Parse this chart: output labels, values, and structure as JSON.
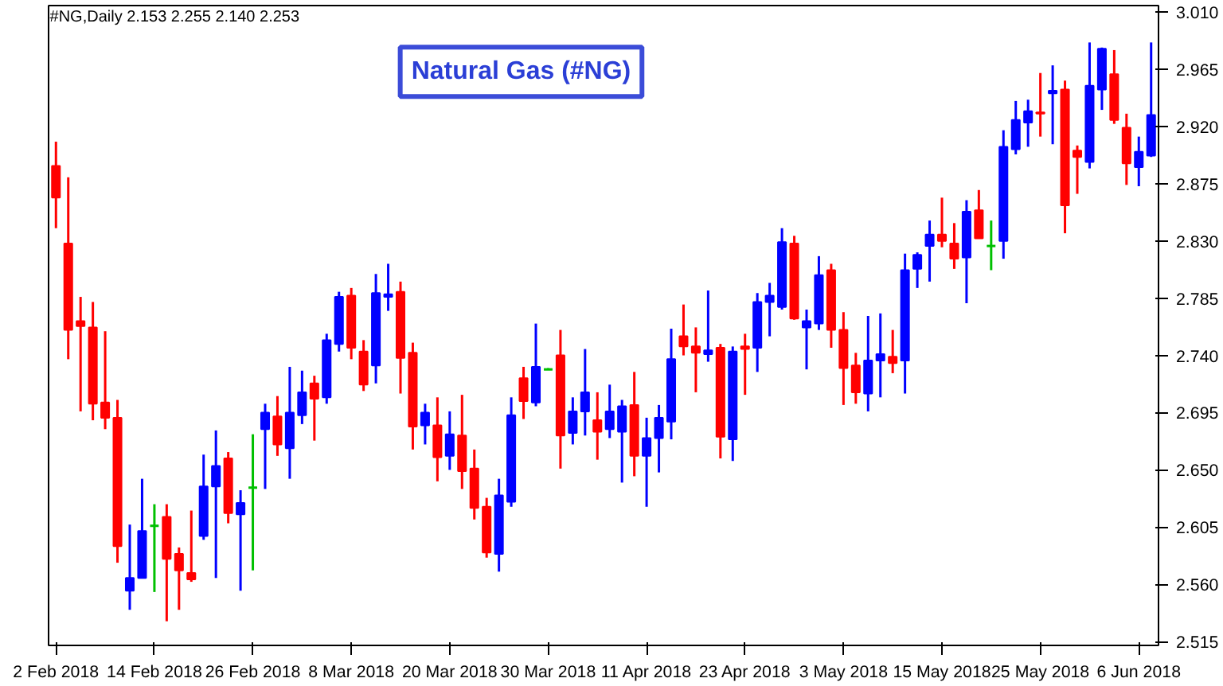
{
  "chart_data": {
    "type": "candlestick",
    "title": "Natural Gas (#NG)",
    "annotations": [
      "#NG,Daily  2.153 2.255 2.140 2.253"
    ],
    "categories": [
      "2 Feb 2018",
      null,
      null,
      null,
      null,
      null,
      null,
      null,
      "14 Feb 2018",
      null,
      null,
      null,
      null,
      null,
      null,
      null,
      "26 Feb 2018",
      null,
      null,
      null,
      null,
      null,
      null,
      null,
      "8 Mar 2018",
      null,
      null,
      null,
      null,
      null,
      null,
      null,
      "20 Mar 2018",
      null,
      null,
      null,
      null,
      null,
      null,
      null,
      "30 Mar 2018",
      null,
      null,
      null,
      null,
      null,
      null,
      null,
      "11 Apr 2018",
      null,
      null,
      null,
      null,
      null,
      null,
      null,
      "23 Apr 2018",
      null,
      null,
      null,
      null,
      null,
      null,
      null,
      "3 May 2018",
      null,
      null,
      null,
      null,
      null,
      null,
      null,
      "15 May 2018",
      null,
      null,
      null,
      null,
      null,
      null,
      null,
      "25 May 2018",
      null,
      null,
      null,
      null,
      null,
      null,
      null,
      "6 Jun 2018",
      null
    ],
    "ohlc": [
      [
        2.889,
        2.908,
        2.84,
        2.864
      ],
      [
        2.828,
        2.88,
        2.737,
        2.76
      ],
      [
        2.767,
        2.786,
        2.696,
        2.763
      ],
      [
        2.762,
        2.782,
        2.689,
        2.702
      ],
      [
        2.703,
        2.759,
        2.682,
        2.691
      ],
      [
        2.691,
        2.705,
        2.577,
        2.59
      ],
      [
        2.555,
        2.607,
        2.54,
        2.565
      ],
      [
        2.565,
        2.643,
        2.565,
        2.602
      ],
      [
        2.606,
        2.623,
        2.554,
        2.606
      ],
      [
        2.613,
        2.623,
        2.531,
        2.58
      ],
      [
        2.584,
        2.589,
        2.54,
        2.571
      ],
      [
        2.569,
        2.618,
        2.562,
        2.564
      ],
      [
        2.598,
        2.662,
        2.595,
        2.637
      ],
      [
        2.637,
        2.681,
        2.565,
        2.653
      ],
      [
        2.659,
        2.664,
        2.608,
        2.616
      ],
      [
        2.615,
        2.634,
        2.555,
        2.624
      ],
      [
        2.636,
        2.678,
        2.571,
        2.636
      ],
      [
        2.682,
        2.702,
        2.635,
        2.695
      ],
      [
        2.692,
        2.708,
        2.661,
        2.67
      ],
      [
        2.667,
        2.731,
        2.643,
        2.695
      ],
      [
        2.693,
        2.728,
        2.686,
        2.711
      ],
      [
        2.718,
        2.724,
        2.673,
        2.706
      ],
      [
        2.707,
        2.757,
        2.702,
        2.752
      ],
      [
        2.749,
        2.79,
        2.743,
        2.786
      ],
      [
        2.787,
        2.793,
        2.737,
        2.746
      ],
      [
        2.743,
        2.752,
        2.712,
        2.717
      ],
      [
        2.732,
        2.804,
        2.718,
        2.789
      ],
      [
        2.786,
        2.812,
        2.775,
        2.788
      ],
      [
        2.79,
        2.798,
        2.71,
        2.738
      ],
      [
        2.742,
        2.75,
        2.666,
        2.684
      ],
      [
        2.685,
        2.702,
        2.67,
        2.695
      ],
      [
        2.685,
        2.707,
        2.641,
        2.66
      ],
      [
        2.661,
        2.696,
        2.65,
        2.678
      ],
      [
        2.677,
        2.709,
        2.635,
        2.649
      ],
      [
        2.651,
        2.666,
        2.611,
        2.62
      ],
      [
        2.621,
        2.628,
        2.581,
        2.585
      ],
      [
        2.584,
        2.643,
        2.57,
        2.63
      ],
      [
        2.625,
        2.707,
        2.621,
        2.693
      ],
      [
        2.722,
        2.731,
        2.69,
        2.704
      ],
      [
        2.703,
        2.765,
        2.7,
        2.731
      ],
      [
        2.729,
        2.73,
        2.729,
        2.729
      ],
      [
        2.74,
        2.76,
        2.651,
        2.677
      ],
      [
        2.679,
        2.707,
        2.67,
        2.696
      ],
      [
        2.696,
        2.745,
        2.677,
        2.711
      ],
      [
        2.689,
        2.711,
        2.658,
        2.68
      ],
      [
        2.682,
        2.717,
        2.675,
        2.696
      ],
      [
        2.68,
        2.705,
        2.64,
        2.7
      ],
      [
        2.701,
        2.727,
        2.645,
        2.661
      ],
      [
        2.661,
        2.691,
        2.621,
        2.675
      ],
      [
        2.675,
        2.701,
        2.648,
        2.691
      ],
      [
        2.688,
        2.761,
        2.674,
        2.737
      ],
      [
        2.755,
        2.78,
        2.74,
        2.747
      ],
      [
        2.747,
        2.762,
        2.711,
        2.742
      ],
      [
        2.741,
        2.791,
        2.735,
        2.744
      ],
      [
        2.746,
        2.749,
        2.659,
        2.676
      ],
      [
        2.674,
        2.747,
        2.657,
        2.743
      ],
      [
        2.747,
        2.757,
        2.709,
        2.745
      ],
      [
        2.746,
        2.789,
        2.727,
        2.782
      ],
      [
        2.782,
        2.797,
        2.755,
        2.787
      ],
      [
        2.778,
        2.84,
        2.776,
        2.829
      ],
      [
        2.828,
        2.834,
        2.768,
        2.769
      ],
      [
        2.762,
        2.776,
        2.729,
        2.767
      ],
      [
        2.765,
        2.818,
        2.76,
        2.803
      ],
      [
        2.807,
        2.812,
        2.746,
        2.76
      ],
      [
        2.76,
        2.774,
        2.701,
        2.73
      ],
      [
        2.732,
        2.742,
        2.702,
        2.711
      ],
      [
        2.71,
        2.771,
        2.696,
        2.736
      ],
      [
        2.736,
        2.773,
        2.707,
        2.741
      ],
      [
        2.739,
        2.76,
        2.726,
        2.734
      ],
      [
        2.736,
        2.82,
        2.71,
        2.807
      ],
      [
        2.808,
        2.821,
        2.793,
        2.819
      ],
      [
        2.826,
        2.846,
        2.798,
        2.835
      ],
      [
        2.835,
        2.864,
        2.825,
        2.83
      ],
      [
        2.828,
        2.844,
        2.808,
        2.816
      ],
      [
        2.817,
        2.862,
        2.781,
        2.853
      ],
      [
        2.854,
        2.87,
        2.832,
        2.832
      ],
      [
        2.826,
        2.846,
        2.807,
        2.826
      ],
      [
        2.83,
        2.917,
        2.816,
        2.904
      ],
      [
        2.902,
        2.94,
        2.898,
        2.925
      ],
      [
        2.923,
        2.941,
        2.904,
        2.932
      ],
      [
        2.931,
        2.962,
        2.912,
        2.93
      ],
      [
        2.946,
        2.968,
        2.906,
        2.948
      ],
      [
        2.949,
        2.956,
        2.836,
        2.858
      ],
      [
        2.901,
        2.905,
        2.867,
        2.896
      ],
      [
        2.892,
        2.986,
        2.887,
        2.952
      ],
      [
        2.949,
        2.982,
        2.933,
        2.981
      ],
      [
        2.961,
        2.98,
        2.922,
        2.925
      ],
      [
        2.919,
        2.93,
        2.874,
        2.891
      ],
      [
        2.888,
        2.912,
        2.873,
        2.9
      ],
      [
        2.897,
        2.986,
        2.896,
        2.929
      ]
    ],
    "colors": [
      "#ff0000",
      "#ff0000",
      "#ff0000",
      "#ff0000",
      "#ff0000",
      "#ff0000",
      "#0000ff",
      "#0000ff",
      "#00c000",
      "#ff0000",
      "#ff0000",
      "#ff0000",
      "#0000ff",
      "#0000ff",
      "#ff0000",
      "#0000ff",
      "#00c000",
      "#0000ff",
      "#ff0000",
      "#0000ff",
      "#0000ff",
      "#ff0000",
      "#0000ff",
      "#0000ff",
      "#ff0000",
      "#ff0000",
      "#0000ff",
      "#0000ff",
      "#ff0000",
      "#ff0000",
      "#0000ff",
      "#ff0000",
      "#0000ff",
      "#ff0000",
      "#ff0000",
      "#ff0000",
      "#0000ff",
      "#0000ff",
      "#ff0000",
      "#0000ff",
      "#00c000",
      "#ff0000",
      "#0000ff",
      "#0000ff",
      "#ff0000",
      "#0000ff",
      "#0000ff",
      "#ff0000",
      "#0000ff",
      "#0000ff",
      "#0000ff",
      "#ff0000",
      "#ff0000",
      "#0000ff",
      "#ff0000",
      "#0000ff",
      "#ff0000",
      "#0000ff",
      "#0000ff",
      "#0000ff",
      "#ff0000",
      "#0000ff",
      "#0000ff",
      "#ff0000",
      "#ff0000",
      "#ff0000",
      "#0000ff",
      "#0000ff",
      "#ff0000",
      "#0000ff",
      "#0000ff",
      "#0000ff",
      "#ff0000",
      "#ff0000",
      "#0000ff",
      "#ff0000",
      "#00c000",
      "#0000ff",
      "#0000ff",
      "#0000ff",
      "#ff0000",
      "#0000ff",
      "#ff0000",
      "#ff0000",
      "#0000ff",
      "#0000ff",
      "#ff0000",
      "#ff0000",
      "#0000ff",
      "#0000ff"
    ],
    "ylim": [
      2.512,
      3.015
    ],
    "yticks": [
      {
        "value": 3.01,
        "label": "3.010"
      },
      2.965,
      {
        "value": 2.92,
        "label": "2.920"
      },
      2.875,
      {
        "value": 2.83,
        "label": "2.830"
      },
      2.785,
      {
        "value": 2.74,
        "label": "2.740"
      },
      2.695,
      {
        "value": 2.65,
        "label": "2.650"
      },
      2.605,
      {
        "value": 2.56,
        "label": "2.560"
      },
      2.515
    ],
    "grid": false
  }
}
